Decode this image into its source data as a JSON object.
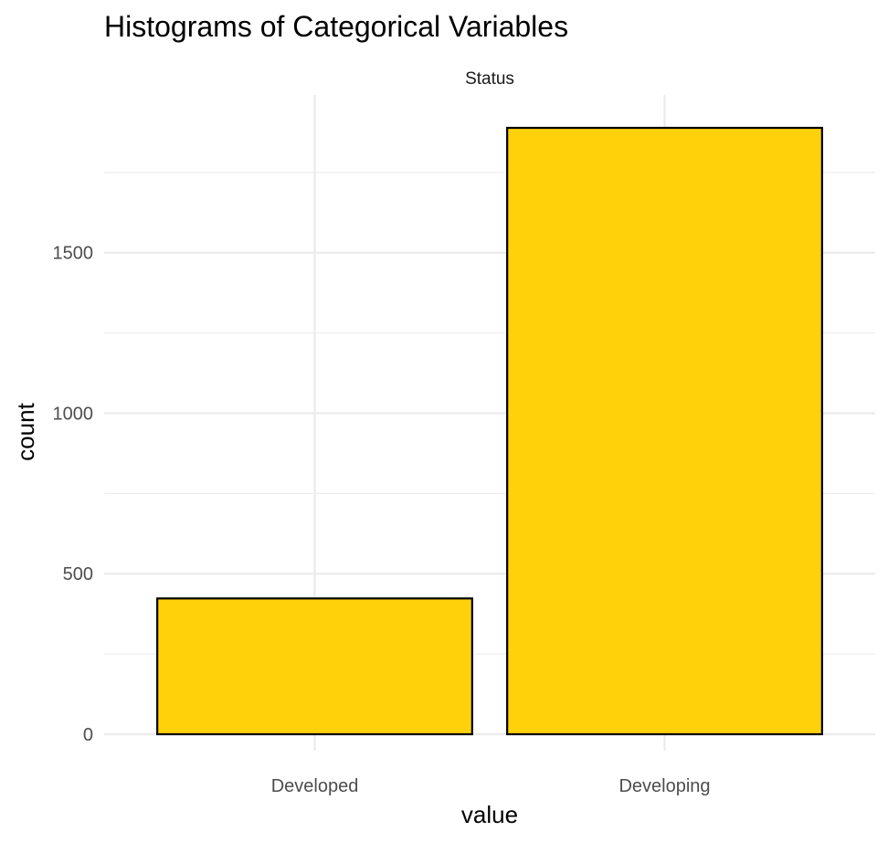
{
  "chart_data": {
    "type": "bar",
    "title": "Histograms of Categorical Variables",
    "facet": "Status",
    "xlabel": "value",
    "ylabel": "count",
    "categories": [
      "Developed",
      "Developing"
    ],
    "values": [
      423,
      1889
    ],
    "ylim": [
      0,
      1889
    ],
    "yticks": [
      0,
      500,
      1000,
      1500
    ],
    "grid": true,
    "legend": "none",
    "bar_color": "#FFD10B",
    "bar_outline": "#000000",
    "grid_color": "#EBEBEB"
  }
}
